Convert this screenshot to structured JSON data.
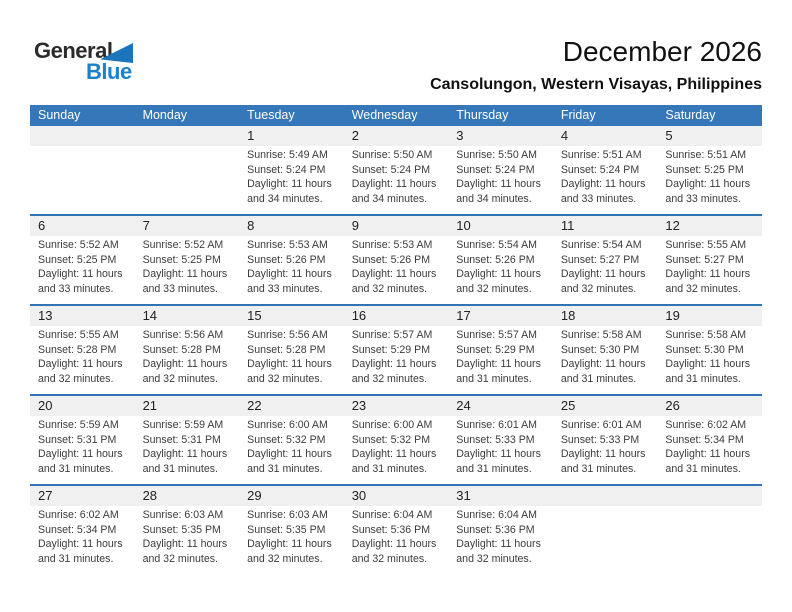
{
  "logo": {
    "line1": "General",
    "line2": "Blue"
  },
  "header": {
    "title": "December 2026",
    "location": "Cansolungon, Western Visayas, Philippines"
  },
  "colors": {
    "header_blue": "#3577b9",
    "divider_blue": "#2e74b7",
    "band_gray": "#f0f0f0",
    "logo_blue": "#1c80ca"
  },
  "weekdays": [
    "Sunday",
    "Monday",
    "Tuesday",
    "Wednesday",
    "Thursday",
    "Friday",
    "Saturday"
  ],
  "weeks": [
    [
      null,
      null,
      {
        "day": "1",
        "sunrise": "Sunrise: 5:49 AM",
        "sunset": "Sunset: 5:24 PM",
        "daylight1": "Daylight: 11 hours",
        "daylight2": "and 34 minutes."
      },
      {
        "day": "2",
        "sunrise": "Sunrise: 5:50 AM",
        "sunset": "Sunset: 5:24 PM",
        "daylight1": "Daylight: 11 hours",
        "daylight2": "and 34 minutes."
      },
      {
        "day": "3",
        "sunrise": "Sunrise: 5:50 AM",
        "sunset": "Sunset: 5:24 PM",
        "daylight1": "Daylight: 11 hours",
        "daylight2": "and 34 minutes."
      },
      {
        "day": "4",
        "sunrise": "Sunrise: 5:51 AM",
        "sunset": "Sunset: 5:24 PM",
        "daylight1": "Daylight: 11 hours",
        "daylight2": "and 33 minutes."
      },
      {
        "day": "5",
        "sunrise": "Sunrise: 5:51 AM",
        "sunset": "Sunset: 5:25 PM",
        "daylight1": "Daylight: 11 hours",
        "daylight2": "and 33 minutes."
      }
    ],
    [
      {
        "day": "6",
        "sunrise": "Sunrise: 5:52 AM",
        "sunset": "Sunset: 5:25 PM",
        "daylight1": "Daylight: 11 hours",
        "daylight2": "and 33 minutes."
      },
      {
        "day": "7",
        "sunrise": "Sunrise: 5:52 AM",
        "sunset": "Sunset: 5:25 PM",
        "daylight1": "Daylight: 11 hours",
        "daylight2": "and 33 minutes."
      },
      {
        "day": "8",
        "sunrise": "Sunrise: 5:53 AM",
        "sunset": "Sunset: 5:26 PM",
        "daylight1": "Daylight: 11 hours",
        "daylight2": "and 33 minutes."
      },
      {
        "day": "9",
        "sunrise": "Sunrise: 5:53 AM",
        "sunset": "Sunset: 5:26 PM",
        "daylight1": "Daylight: 11 hours",
        "daylight2": "and 32 minutes."
      },
      {
        "day": "10",
        "sunrise": "Sunrise: 5:54 AM",
        "sunset": "Sunset: 5:26 PM",
        "daylight1": "Daylight: 11 hours",
        "daylight2": "and 32 minutes."
      },
      {
        "day": "11",
        "sunrise": "Sunrise: 5:54 AM",
        "sunset": "Sunset: 5:27 PM",
        "daylight1": "Daylight: 11 hours",
        "daylight2": "and 32 minutes."
      },
      {
        "day": "12",
        "sunrise": "Sunrise: 5:55 AM",
        "sunset": "Sunset: 5:27 PM",
        "daylight1": "Daylight: 11 hours",
        "daylight2": "and 32 minutes."
      }
    ],
    [
      {
        "day": "13",
        "sunrise": "Sunrise: 5:55 AM",
        "sunset": "Sunset: 5:28 PM",
        "daylight1": "Daylight: 11 hours",
        "daylight2": "and 32 minutes."
      },
      {
        "day": "14",
        "sunrise": "Sunrise: 5:56 AM",
        "sunset": "Sunset: 5:28 PM",
        "daylight1": "Daylight: 11 hours",
        "daylight2": "and 32 minutes."
      },
      {
        "day": "15",
        "sunrise": "Sunrise: 5:56 AM",
        "sunset": "Sunset: 5:28 PM",
        "daylight1": "Daylight: 11 hours",
        "daylight2": "and 32 minutes."
      },
      {
        "day": "16",
        "sunrise": "Sunrise: 5:57 AM",
        "sunset": "Sunset: 5:29 PM",
        "daylight1": "Daylight: 11 hours",
        "daylight2": "and 32 minutes."
      },
      {
        "day": "17",
        "sunrise": "Sunrise: 5:57 AM",
        "sunset": "Sunset: 5:29 PM",
        "daylight1": "Daylight: 11 hours",
        "daylight2": "and 31 minutes."
      },
      {
        "day": "18",
        "sunrise": "Sunrise: 5:58 AM",
        "sunset": "Sunset: 5:30 PM",
        "daylight1": "Daylight: 11 hours",
        "daylight2": "and 31 minutes."
      },
      {
        "day": "19",
        "sunrise": "Sunrise: 5:58 AM",
        "sunset": "Sunset: 5:30 PM",
        "daylight1": "Daylight: 11 hours",
        "daylight2": "and 31 minutes."
      }
    ],
    [
      {
        "day": "20",
        "sunrise": "Sunrise: 5:59 AM",
        "sunset": "Sunset: 5:31 PM",
        "daylight1": "Daylight: 11 hours",
        "daylight2": "and 31 minutes."
      },
      {
        "day": "21",
        "sunrise": "Sunrise: 5:59 AM",
        "sunset": "Sunset: 5:31 PM",
        "daylight1": "Daylight: 11 hours",
        "daylight2": "and 31 minutes."
      },
      {
        "day": "22",
        "sunrise": "Sunrise: 6:00 AM",
        "sunset": "Sunset: 5:32 PM",
        "daylight1": "Daylight: 11 hours",
        "daylight2": "and 31 minutes."
      },
      {
        "day": "23",
        "sunrise": "Sunrise: 6:00 AM",
        "sunset": "Sunset: 5:32 PM",
        "daylight1": "Daylight: 11 hours",
        "daylight2": "and 31 minutes."
      },
      {
        "day": "24",
        "sunrise": "Sunrise: 6:01 AM",
        "sunset": "Sunset: 5:33 PM",
        "daylight1": "Daylight: 11 hours",
        "daylight2": "and 31 minutes."
      },
      {
        "day": "25",
        "sunrise": "Sunrise: 6:01 AM",
        "sunset": "Sunset: 5:33 PM",
        "daylight1": "Daylight: 11 hours",
        "daylight2": "and 31 minutes."
      },
      {
        "day": "26",
        "sunrise": "Sunrise: 6:02 AM",
        "sunset": "Sunset: 5:34 PM",
        "daylight1": "Daylight: 11 hours",
        "daylight2": "and 31 minutes."
      }
    ],
    [
      {
        "day": "27",
        "sunrise": "Sunrise: 6:02 AM",
        "sunset": "Sunset: 5:34 PM",
        "daylight1": "Daylight: 11 hours",
        "daylight2": "and 31 minutes."
      },
      {
        "day": "28",
        "sunrise": "Sunrise: 6:03 AM",
        "sunset": "Sunset: 5:35 PM",
        "daylight1": "Daylight: 11 hours",
        "daylight2": "and 32 minutes."
      },
      {
        "day": "29",
        "sunrise": "Sunrise: 6:03 AM",
        "sunset": "Sunset: 5:35 PM",
        "daylight1": "Daylight: 11 hours",
        "daylight2": "and 32 minutes."
      },
      {
        "day": "30",
        "sunrise": "Sunrise: 6:04 AM",
        "sunset": "Sunset: 5:36 PM",
        "daylight1": "Daylight: 11 hours",
        "daylight2": "and 32 minutes."
      },
      {
        "day": "31",
        "sunrise": "Sunrise: 6:04 AM",
        "sunset": "Sunset: 5:36 PM",
        "daylight1": "Daylight: 11 hours",
        "daylight2": "and 32 minutes."
      },
      null,
      null
    ]
  ]
}
